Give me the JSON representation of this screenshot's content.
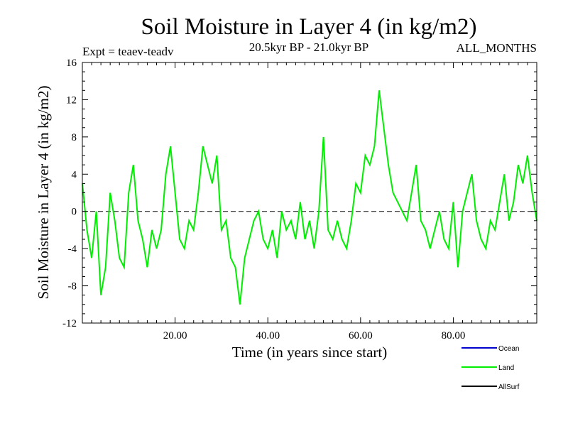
{
  "chart_data": {
    "type": "line",
    "title": "Soil Moisture in Layer 4 (in kg/m2)",
    "subtitle": "20.5kyr BP - 21.0kyr BP",
    "left_annotation": "Expt = teaev-teadv",
    "right_annotation": "ALL_MONTHS",
    "xlabel": "Time (in years since start)",
    "ylabel": "Soil Moisture in Layer 4 (in kg/m2)",
    "xlim": [
      0,
      98
    ],
    "ylim": [
      -12,
      16
    ],
    "x_ticks": [
      20,
      40,
      60,
      80
    ],
    "x_tick_labels": [
      "20.00",
      "40.00",
      "60.00",
      "80.00"
    ],
    "y_ticks": [
      -12,
      -8,
      -4,
      0,
      4,
      8,
      12,
      16
    ],
    "y_tick_labels": [
      "-12",
      "-8",
      "-4",
      "0",
      "4",
      "8",
      "12",
      "16"
    ],
    "zero_line": "dashed",
    "legend": [
      {
        "name": "Ocean",
        "label": "Ocean",
        "color": "#0000cc"
      },
      {
        "name": "Land",
        "label": "Land",
        "color": "#00ee00"
      },
      {
        "name": "AllSurf",
        "label": "AllSurf",
        "color": "#000000"
      }
    ],
    "series": [
      {
        "name": "Land",
        "color": "#00ee00",
        "x": [
          0,
          1,
          2,
          3,
          4,
          5,
          6,
          7,
          8,
          9,
          10,
          11,
          12,
          13,
          14,
          15,
          16,
          17,
          18,
          19,
          20,
          21,
          22,
          23,
          24,
          25,
          26,
          27,
          28,
          29,
          30,
          31,
          32,
          33,
          34,
          35,
          36,
          37,
          38,
          39,
          40,
          41,
          42,
          43,
          44,
          45,
          46,
          47,
          48,
          49,
          50,
          51,
          52,
          53,
          54,
          55,
          56,
          57,
          58,
          59,
          60,
          61,
          62,
          63,
          64,
          65,
          66,
          67,
          68,
          69,
          70,
          71,
          72,
          73,
          74,
          75,
          76,
          77,
          78,
          79,
          80,
          81,
          82,
          83,
          84,
          85,
          86,
          87,
          88,
          89,
          90,
          91,
          92,
          93,
          94,
          95,
          96,
          97,
          98
        ],
        "values": [
          3,
          -2,
          -5,
          0,
          -9,
          -6,
          2,
          -1,
          -5,
          -6,
          2,
          5,
          -1,
          -3,
          -6,
          -2,
          -4,
          -2,
          4,
          7,
          2,
          -3,
          -4,
          -1,
          -2,
          2,
          7,
          5,
          3,
          6,
          -2,
          -1,
          -5,
          -6,
          -10,
          -5,
          -3,
          -1,
          0,
          -3,
          -4,
          -2,
          -5,
          0,
          -2,
          -1,
          -3,
          1,
          -3,
          -1,
          -4,
          0,
          8,
          -2,
          -3,
          -1,
          -3,
          -4,
          -1,
          3,
          2,
          6,
          5,
          7,
          13,
          9,
          5,
          2,
          1,
          0,
          -1,
          2,
          5,
          -1,
          -2,
          -4,
          -2,
          0,
          -3,
          -4,
          1,
          -6,
          0,
          2,
          4,
          -1,
          -3,
          -4,
          -1,
          -2,
          1,
          4,
          -1,
          1,
          5,
          3,
          6,
          2,
          -1
        ]
      }
    ]
  }
}
